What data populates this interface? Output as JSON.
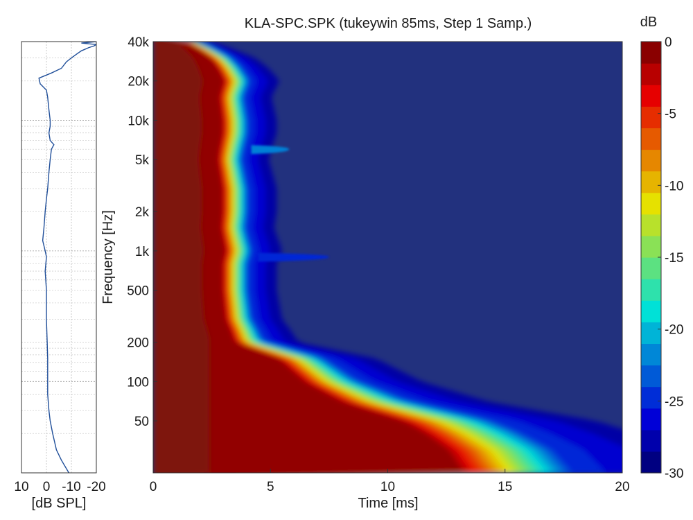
{
  "chart_data": [
    {
      "type": "line",
      "panel": "side-frequency-response",
      "xlabel": "[dB SPL]",
      "x_tick_labels": [
        "10",
        "0",
        "-10",
        "-20"
      ],
      "x_ticks": [
        10,
        0,
        -10,
        -20
      ],
      "xlim": [
        10,
        -20
      ],
      "y_scale": "log",
      "ylim": [
        20,
        40000
      ],
      "grid": true,
      "series": [
        {
          "freq": [
            20,
            25,
            30,
            40,
            50,
            60,
            80,
            100,
            150,
            200,
            300,
            500,
            700,
            900,
            1000,
            1200,
            1500,
            2000,
            2500,
            3000,
            4000,
            5000,
            6000,
            6500,
            7000,
            8000,
            9000,
            10000,
            12000,
            15000,
            17000,
            19000,
            21000,
            23000,
            25000,
            28000,
            30000,
            32000,
            34000,
            36000,
            37000,
            38000,
            39000,
            40000
          ],
          "spl": [
            -9,
            -6,
            -4,
            -2.5,
            -1.5,
            -1,
            -0.5,
            -0.5,
            -0.5,
            -0.3,
            0,
            0,
            0.5,
            0,
            0.5,
            1.5,
            1,
            0.5,
            0,
            -0.5,
            -1,
            -1.5,
            -2,
            -3,
            -1.5,
            -1,
            -1.5,
            -1.5,
            -1,
            -0.5,
            0,
            2.5,
            3,
            -2,
            -6,
            -8,
            -10,
            -12,
            -14,
            -17,
            -19,
            -20,
            -14,
            -20
          ]
        }
      ]
    },
    {
      "type": "heatmap",
      "panel": "cumulative-spectral-decay",
      "title": "KLA-SPC.SPK (tukeywin 85ms, Step 1 Samp.)",
      "xlabel": "Time [ms]",
      "ylabel": "Frequency [Hz]",
      "xlim": [
        0,
        20
      ],
      "x_ticks": [
        0,
        5,
        10,
        15,
        20
      ],
      "x_tick_labels": [
        "0",
        "5",
        "10",
        "15",
        "20"
      ],
      "y_scale": "log",
      "ylim": [
        20,
        40000
      ],
      "y_ticks": [
        50,
        100,
        200,
        500,
        1000,
        2000,
        5000,
        10000,
        20000,
        40000
      ],
      "y_tick_labels": [
        "50",
        "100",
        "200",
        "500",
        "1k",
        "2k",
        "5k",
        "10k",
        "20k",
        "40k"
      ],
      "colorbar": {
        "label": "dB",
        "range": [
          -30,
          0
        ],
        "ticks": [
          0,
          -5,
          -10,
          -15,
          -20,
          -25,
          -30
        ],
        "tick_labels": [
          "0",
          "-5",
          "-10",
          "-15",
          "-20",
          "-25",
          "-30"
        ],
        "colormap": "jet"
      },
      "decay_contour": {
        "freq": [
          20,
          30,
          40,
          50,
          70,
          100,
          150,
          200,
          250,
          300,
          500,
          800,
          1000,
          1500,
          2000,
          3000,
          5000,
          6000,
          8000,
          10000,
          15000,
          20000,
          25000,
          30000,
          35000,
          40000
        ],
        "decay_ms": [
          20.5,
          19.5,
          18,
          16.5,
          12.5,
          10,
          8.3,
          5.4,
          5.1,
          4.8,
          4.6,
          4.6,
          4.8,
          4.5,
          4.6,
          4.6,
          4.3,
          4.4,
          4.6,
          4.6,
          4.4,
          4.7,
          4.3,
          3.8,
          3.0,
          2.2
        ]
      },
      "resonances": [
        {
          "freq": 900,
          "time_ms": 7.5,
          "db": -25
        },
        {
          "freq": 6000,
          "time_ms": 5.8,
          "db": -22
        }
      ]
    }
  ]
}
